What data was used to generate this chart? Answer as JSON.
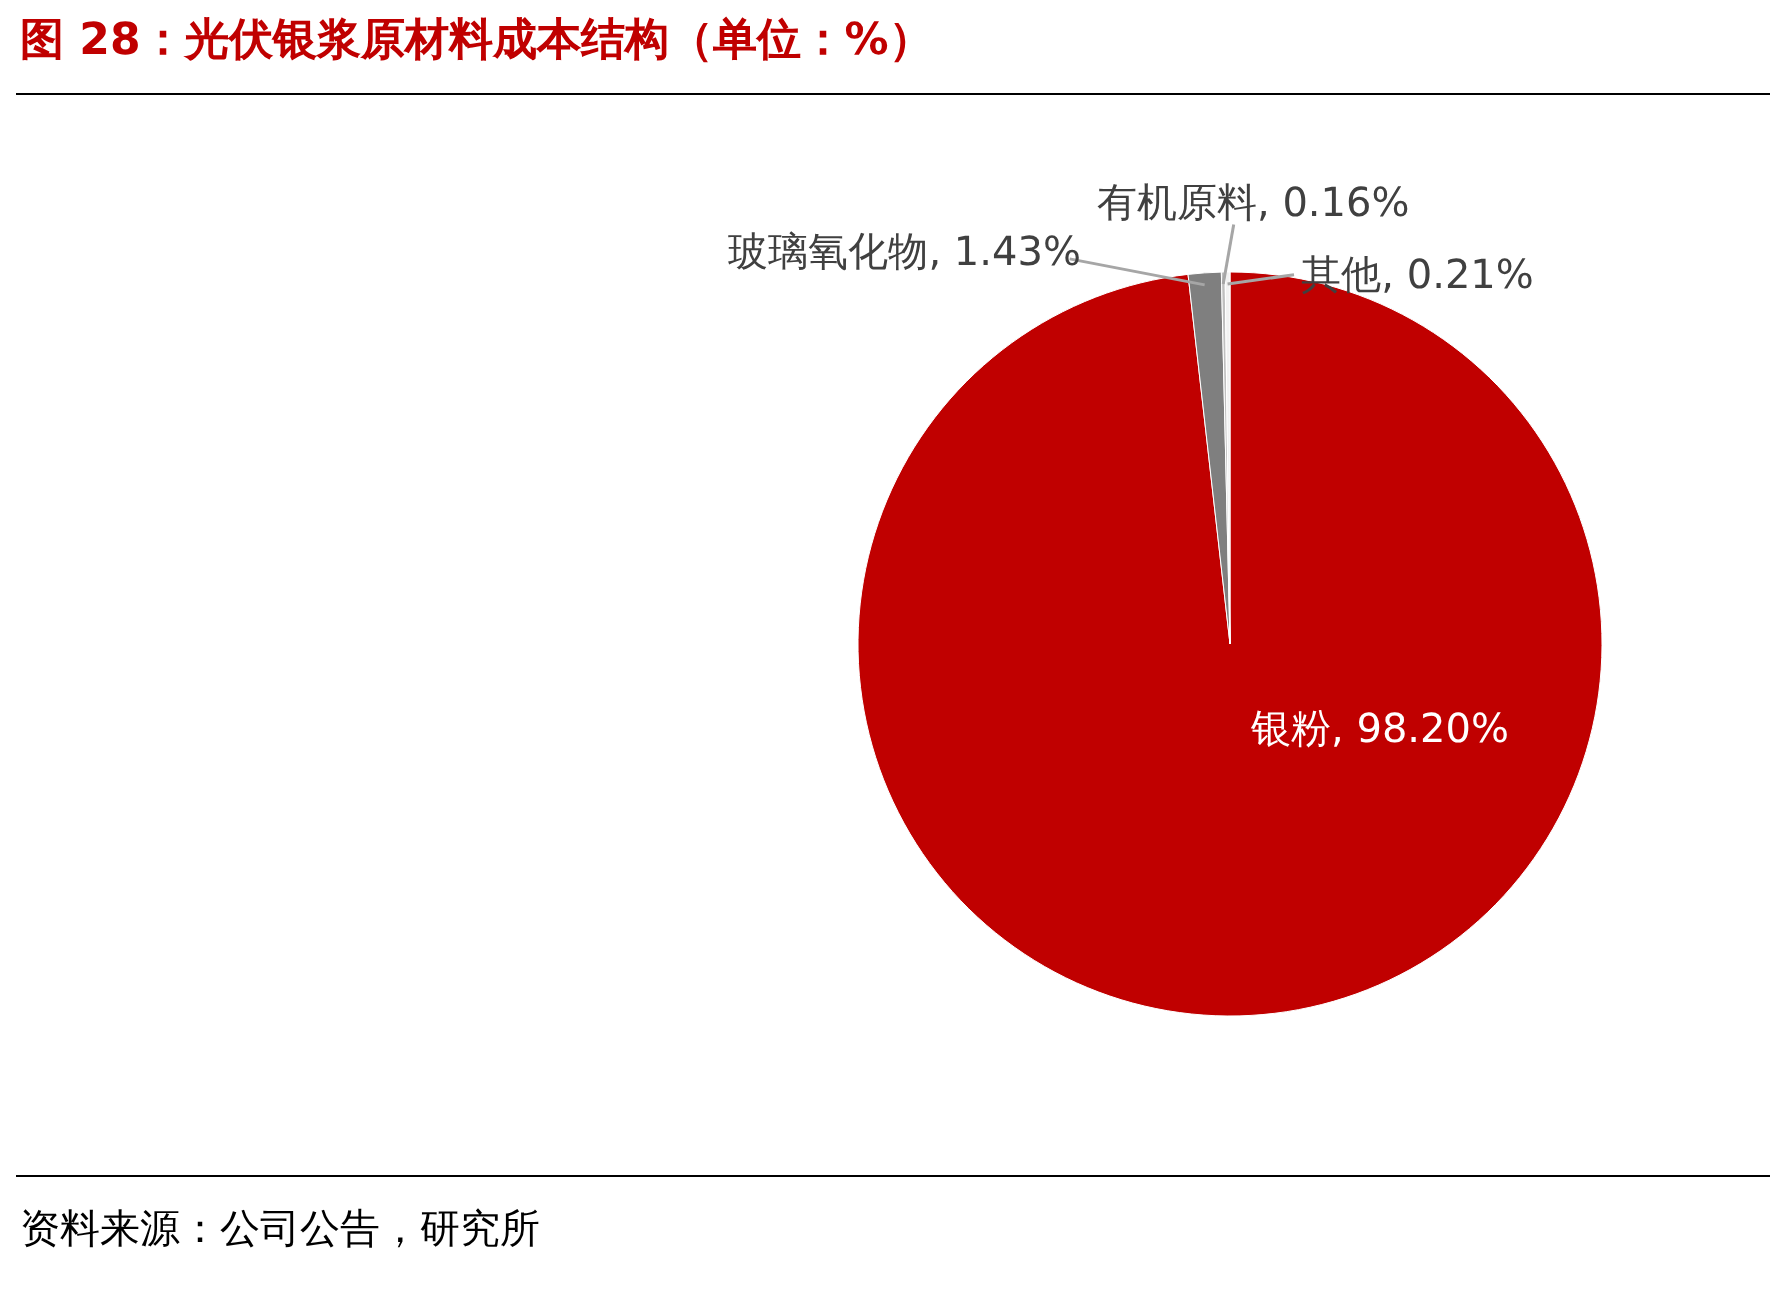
{
  "chart_data": {
    "type": "pie",
    "title": "图 28：光伏银浆原材料成本结构（单位：%）",
    "categories": [
      "银粉",
      "玻璃氧化物",
      "有机原料",
      "其他"
    ],
    "values": [
      98.2,
      1.43,
      0.16,
      0.21
    ],
    "value_labels": [
      "98.20%",
      "1.43%",
      "0.16%",
      "0.21%"
    ],
    "colors": [
      "#c00000",
      "#7f7f7f",
      "#bfbfbf",
      "#f2f2f2"
    ],
    "annotations": [
      "资料来源：公司公告，研究所"
    ]
  }
}
